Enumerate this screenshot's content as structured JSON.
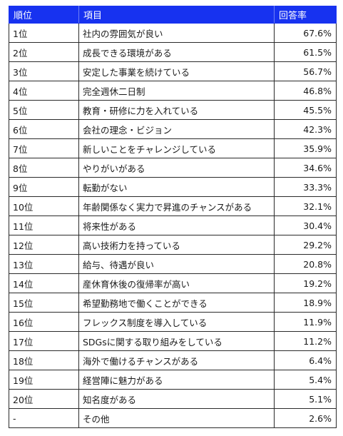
{
  "table": {
    "headers": [
      "順位",
      "項目",
      "回答率"
    ],
    "rows": [
      {
        "rank": "1位",
        "item": "社内の雰囲気が良い",
        "rate": "67.6%"
      },
      {
        "rank": "2位",
        "item": "成長できる環境がある",
        "rate": "61.5%"
      },
      {
        "rank": "3位",
        "item": "安定した事業を続けている",
        "rate": "56.7%"
      },
      {
        "rank": "4位",
        "item": "完全週休二日制",
        "rate": "46.8%"
      },
      {
        "rank": "5位",
        "item": "教育・研修に力を入れている",
        "rate": "45.5%"
      },
      {
        "rank": "6位",
        "item": "会社の理念・ビジョン",
        "rate": "42.3%"
      },
      {
        "rank": "7位",
        "item": "新しいことをチャレンジしている",
        "rate": "35.9%"
      },
      {
        "rank": "8位",
        "item": "やりがいがある",
        "rate": "34.6%"
      },
      {
        "rank": "9位",
        "item": "転勤がない",
        "rate": "33.3%"
      },
      {
        "rank": "10位",
        "item": "年齢関係なく実力で昇進のチャンスがある",
        "rate": "32.1%"
      },
      {
        "rank": "11位",
        "item": "将来性がある",
        "rate": "30.4%"
      },
      {
        "rank": "12位",
        "item": "高い技術力を持っている",
        "rate": "29.2%"
      },
      {
        "rank": "13位",
        "item": "給与、待遇が良い",
        "rate": "20.8%"
      },
      {
        "rank": "14位",
        "item": "産休育休後の復帰率が高い",
        "rate": "19.2%"
      },
      {
        "rank": "15位",
        "item": "希望勤務地で働くことができる",
        "rate": "18.9%"
      },
      {
        "rank": "16位",
        "item": "フレックス制度を導入している",
        "rate": "11.9%"
      },
      {
        "rank": "17位",
        "item": "SDGsに関する取り組みをしている",
        "rate": "11.2%"
      },
      {
        "rank": "18位",
        "item": "海外で働けるチャンスがある",
        "rate": "6.4%"
      },
      {
        "rank": "19位",
        "item": "経営陣に魅力がある",
        "rate": "5.4%"
      },
      {
        "rank": "20位",
        "item": "知名度がある",
        "rate": "5.1%"
      },
      {
        "rank": "-",
        "item": "その他",
        "rate": "2.6%"
      }
    ]
  },
  "colors": {
    "header_bg": "#1732f0",
    "header_text": "#ffffff",
    "border": "#2a2a2a"
  }
}
